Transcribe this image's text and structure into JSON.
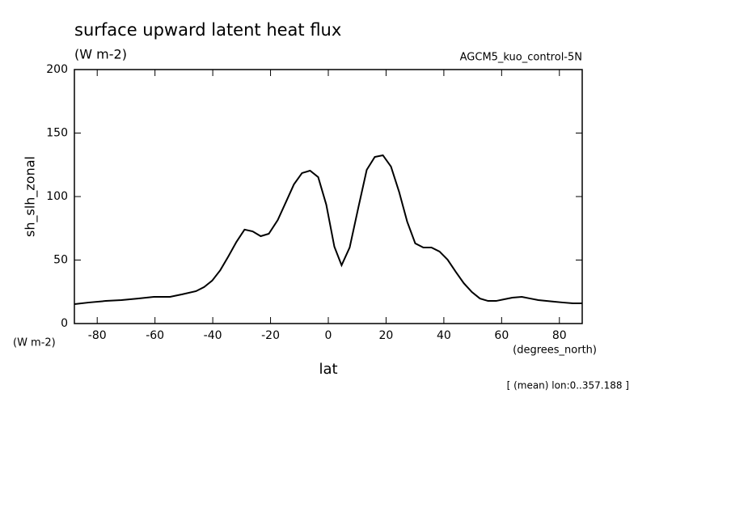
{
  "chart_data": {
    "type": "line",
    "title": "surface upward latent heat flux",
    "subtitle": "(W m-2)",
    "experiment": "AGCM5_kuo_control-5N",
    "ylabel": "sh_slh_zonal",
    "y_units": "(W m-2)",
    "x_units": "(degrees_north)",
    "xlabel": "lat",
    "note": "[ (mean) lon:0..357.188 ]",
    "x": [
      -87.9,
      -82.8,
      -77,
      -71.6,
      -66,
      -60.4,
      -54.8,
      -50.6,
      -45.8,
      -43,
      -40.2,
      -37.4,
      -34.6,
      -31.8,
      -29,
      -26.2,
      -23.4,
      -20.6,
      -17.5,
      -14.7,
      -11.9,
      -9.1,
      -6.3,
      -3.5,
      -0.7,
      2.1,
      4.6,
      7.4,
      10.5,
      13.3,
      16.1,
      18.9,
      21.7,
      24.5,
      27.3,
      30.1,
      32.9,
      35.7,
      38.5,
      41.3,
      44.1,
      46.9,
      49.7,
      52.5,
      55.3,
      58.1,
      60.9,
      63.7,
      67,
      69.9,
      72.7,
      75.5,
      78.3,
      81.1,
      84.7,
      87.9
    ],
    "series": [
      {
        "name": "sh_slh_zonal",
        "color": "#000000",
        "values": [
          15.3,
          16.6,
          17.8,
          18.5,
          19.7,
          21,
          21,
          23,
          25.5,
          28.7,
          33.8,
          42,
          52.9,
          64.3,
          74,
          72.6,
          68.8,
          70.7,
          81.5,
          95.5,
          109.6,
          118.5,
          120.4,
          115.3,
          93.6,
          60.5,
          45.9,
          59.9,
          92.4,
          121,
          131.2,
          132.5,
          123.6,
          103.8,
          80.3,
          63.1,
          59.9,
          59.9,
          56.7,
          50.3,
          40.8,
          31.8,
          24.8,
          19.7,
          17.8,
          17.8,
          19.1,
          20.4,
          21,
          19.7,
          18.5,
          17.8,
          17.2,
          16.6,
          15.9,
          15.9
        ]
      }
    ],
    "xlim": [
      -87.9,
      87.9
    ],
    "ylim": [
      0,
      200
    ],
    "xticks": [
      -80,
      -60,
      -40,
      -20,
      0,
      20,
      40,
      60,
      80
    ],
    "yticks": [
      0,
      50,
      100,
      150,
      200
    ],
    "grid": false
  }
}
